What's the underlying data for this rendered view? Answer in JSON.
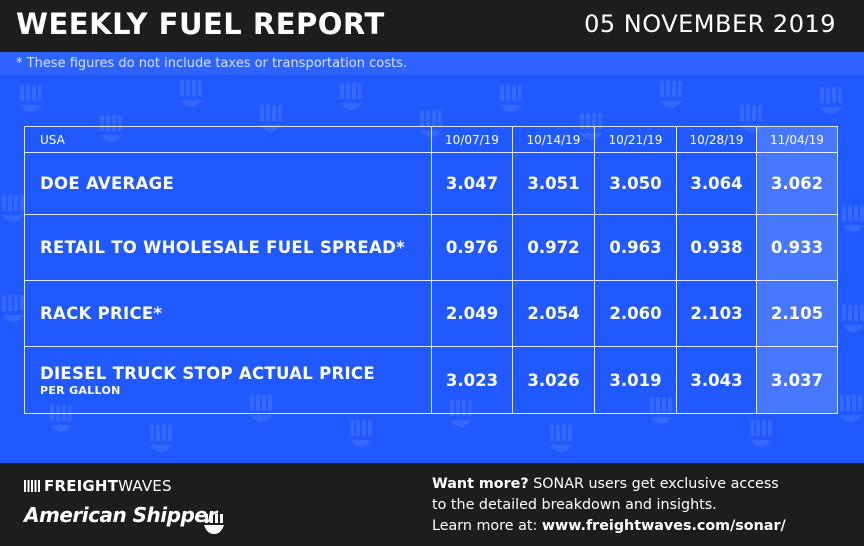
{
  "header": {
    "title": "WEEKLY FUEL REPORT",
    "date": "05 NOVEMBER 2019"
  },
  "disclaimer": "* These figures do not include taxes or transportation costs.",
  "table": {
    "region": "USA",
    "dates": [
      "10/07/19",
      "10/14/19",
      "10/21/19",
      "10/28/19",
      "11/04/19"
    ],
    "rows": [
      {
        "label": "DOE AVERAGE",
        "sublabel": "",
        "values": [
          "3.047",
          "3.051",
          "3.050",
          "3.064",
          "3.062"
        ]
      },
      {
        "label": "RETAIL TO WHOLESALE FUEL SPREAD*",
        "sublabel": "",
        "values": [
          "0.976",
          "0.972",
          "0.963",
          "0.938",
          "0.933"
        ]
      },
      {
        "label": "RACK PRICE*",
        "sublabel": "",
        "values": [
          "2.049",
          "2.054",
          "2.060",
          "2.103",
          "2.105"
        ]
      },
      {
        "label": "DIESEL TRUCK STOP ACTUAL PRICE",
        "sublabel": "PER GALLON",
        "values": [
          "3.023",
          "3.026",
          "3.019",
          "3.043",
          "3.037"
        ]
      }
    ]
  },
  "footer": {
    "brand_primary_bold": "FREIGHT",
    "brand_primary_light": "WAVES",
    "brand_secondary": "American Shipper",
    "cta_bold": "Want more?",
    "cta_line1_rest": " SONAR users get exclusive access",
    "cta_line2": "to the detailed breakdown and insights.",
    "cta_line3_prefix": "Learn more at: ",
    "cta_url": "www.freightwaves.com/sonar/"
  },
  "colors": {
    "background_blue": "#1f59ff",
    "header_dark": "#1d1d1d",
    "text": "#ffffff"
  }
}
